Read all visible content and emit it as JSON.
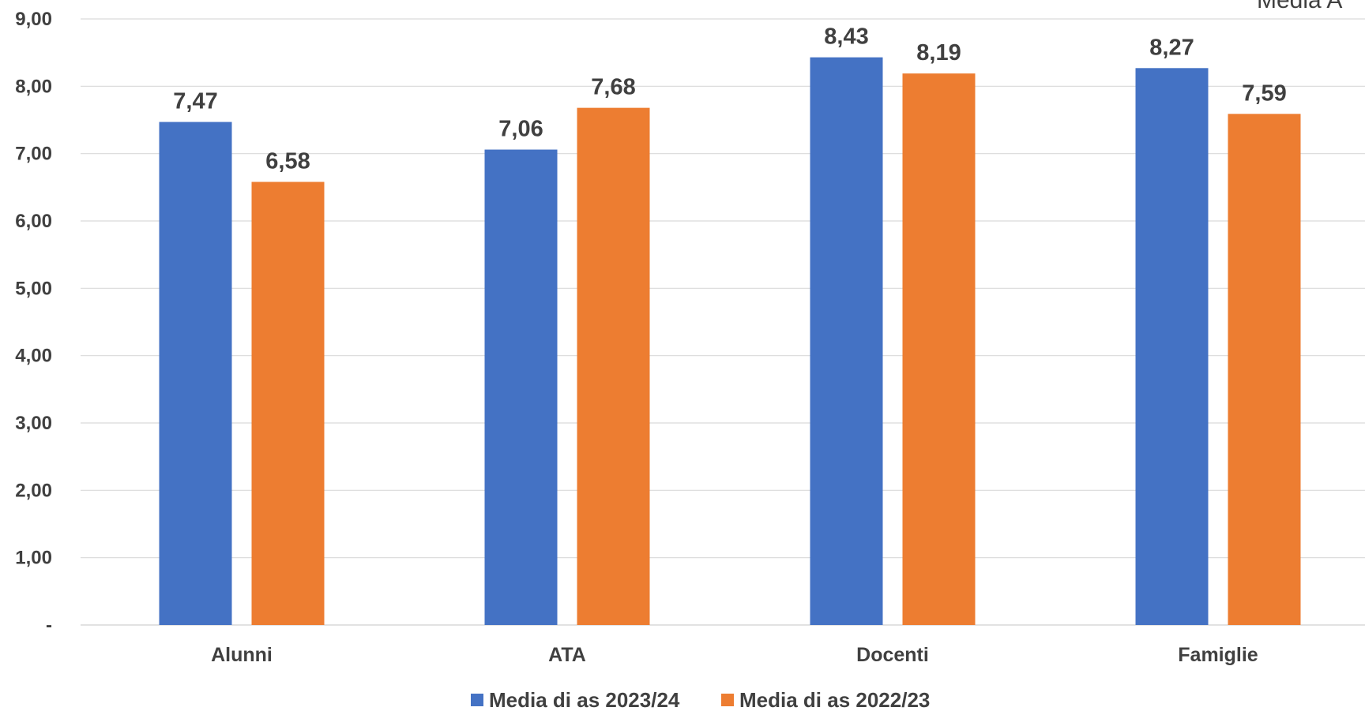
{
  "corner_text": "Media A",
  "chart_data": {
    "type": "bar",
    "categories": [
      "Alunni",
      "ATA",
      "Docenti",
      "Famiglie"
    ],
    "series": [
      {
        "name": "Media di as 2023/24",
        "color": "#4472C4",
        "values": [
          7.47,
          7.06,
          8.43,
          8.27
        ],
        "labels": [
          "7,47",
          "7,06",
          "8,43",
          "8,27"
        ]
      },
      {
        "name": "Media di as 2022/23",
        "color": "#ED7D31",
        "values": [
          6.58,
          7.68,
          8.19,
          7.59
        ],
        "labels": [
          "6,58",
          "7,68",
          "8,19",
          "7,59"
        ]
      }
    ],
    "ylim": [
      0,
      9
    ],
    "yticks": [
      0,
      1,
      2,
      3,
      4,
      5,
      6,
      7,
      8,
      9
    ],
    "ytick_labels": [
      "-",
      "1,00",
      "2,00",
      "3,00",
      "4,00",
      "5,00",
      "6,00",
      "7,00",
      "8,00",
      "9,00"
    ],
    "grid": true,
    "legend_position": "bottom",
    "gridline_color": "#D9D9D9",
    "label_color": "#404040"
  }
}
